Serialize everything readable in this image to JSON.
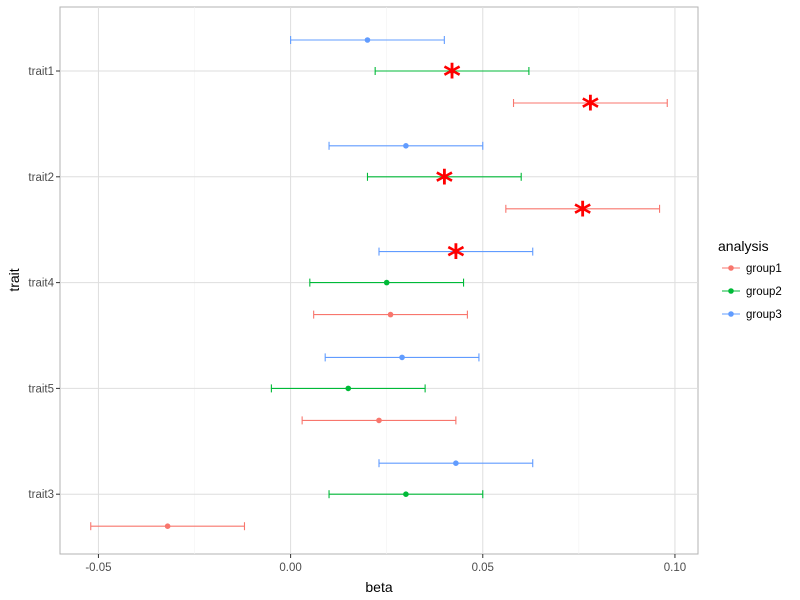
{
  "chart_data": {
    "type": "forest",
    "xlabel": "beta",
    "ylabel": "trait",
    "xlim": [
      -0.06,
      0.106
    ],
    "x_ticks": [
      -0.05,
      0.0,
      0.05,
      0.1
    ],
    "x_tick_labels": [
      "-0.05",
      "0.00",
      "0.05",
      "0.10"
    ],
    "categories": [
      "trait1",
      "trait2",
      "trait4",
      "trait5",
      "trait3"
    ],
    "legend": {
      "title": "analysis",
      "position": "right",
      "entries": [
        "group1",
        "group2",
        "group3"
      ]
    },
    "significance_marker": "*",
    "series": [
      {
        "name": "group1",
        "color": "#F8766D",
        "points": [
          {
            "trait": "trait1",
            "beta": 0.078,
            "lower": 0.058,
            "upper": 0.098,
            "significant": true
          },
          {
            "trait": "trait2",
            "beta": 0.076,
            "lower": 0.056,
            "upper": 0.096,
            "significant": true
          },
          {
            "trait": "trait4",
            "beta": 0.026,
            "lower": 0.006,
            "upper": 0.046,
            "significant": false
          },
          {
            "trait": "trait5",
            "beta": 0.023,
            "lower": 0.003,
            "upper": 0.043,
            "significant": false
          },
          {
            "trait": "trait3",
            "beta": -0.032,
            "lower": -0.052,
            "upper": -0.012,
            "significant": false
          }
        ]
      },
      {
        "name": "group2",
        "color": "#00BA38",
        "points": [
          {
            "trait": "trait1",
            "beta": 0.042,
            "lower": 0.022,
            "upper": 0.062,
            "significant": true
          },
          {
            "trait": "trait2",
            "beta": 0.04,
            "lower": 0.02,
            "upper": 0.06,
            "significant": true
          },
          {
            "trait": "trait4",
            "beta": 0.025,
            "lower": 0.005,
            "upper": 0.045,
            "significant": false
          },
          {
            "trait": "trait5",
            "beta": 0.015,
            "lower": -0.005,
            "upper": 0.035,
            "significant": false
          },
          {
            "trait": "trait3",
            "beta": 0.03,
            "lower": 0.01,
            "upper": 0.05,
            "significant": false
          }
        ]
      },
      {
        "name": "group3",
        "color": "#619CFF",
        "points": [
          {
            "trait": "trait1",
            "beta": 0.02,
            "lower": 0.0,
            "upper": 0.04,
            "significant": false
          },
          {
            "trait": "trait2",
            "beta": 0.03,
            "lower": 0.01,
            "upper": 0.05,
            "significant": false
          },
          {
            "trait": "trait4",
            "beta": 0.043,
            "lower": 0.023,
            "upper": 0.063,
            "significant": true
          },
          {
            "trait": "trait5",
            "beta": 0.029,
            "lower": 0.009,
            "upper": 0.049,
            "significant": false
          },
          {
            "trait": "trait3",
            "beta": 0.043,
            "lower": 0.023,
            "upper": 0.063,
            "significant": false
          }
        ]
      }
    ]
  }
}
